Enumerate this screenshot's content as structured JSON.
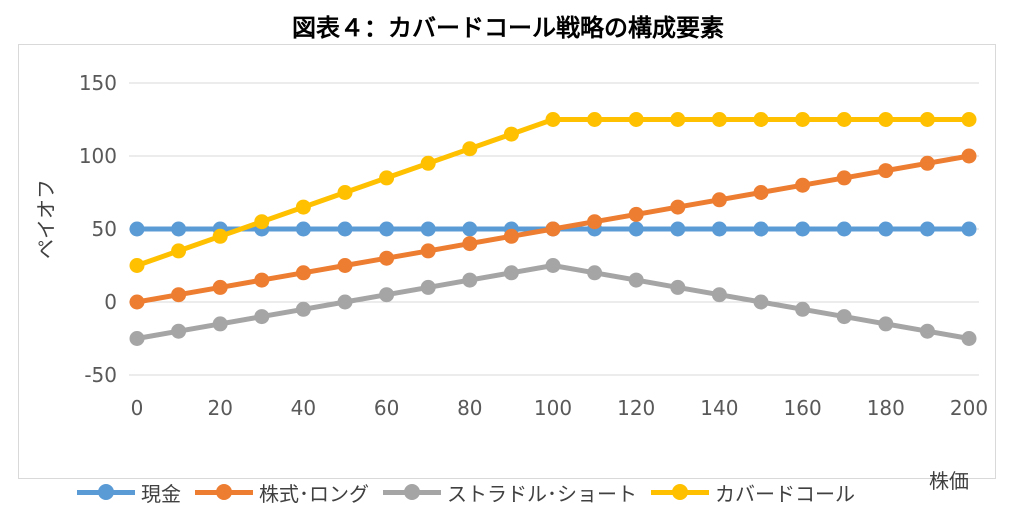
{
  "title": "図表４：カバードコール戦略の構成要素",
  "chart_data": {
    "type": "line",
    "title": "図表４：カバードコール戦略の構成要素",
    "xlabel": "株価",
    "ylabel": "ペイオフ",
    "x": [
      0,
      10,
      20,
      30,
      40,
      50,
      60,
      70,
      80,
      90,
      100,
      110,
      120,
      130,
      140,
      150,
      160,
      170,
      180,
      190,
      200
    ],
    "xticks": [
      0,
      20,
      40,
      60,
      80,
      100,
      120,
      140,
      160,
      180,
      200
    ],
    "yticks": [
      -50,
      0,
      50,
      100,
      150
    ],
    "xlim": [
      0,
      200
    ],
    "ylim": [
      -50,
      150
    ],
    "grid": "horizontal",
    "legend_position": "bottom",
    "series": [
      {
        "name": "現金",
        "color": "#5b9bd5",
        "values": [
          50,
          50,
          50,
          50,
          50,
          50,
          50,
          50,
          50,
          50,
          50,
          50,
          50,
          50,
          50,
          50,
          50,
          50,
          50,
          50,
          50
        ]
      },
      {
        "name": "株式･ロング",
        "color": "#ed7d31",
        "values": [
          0,
          5,
          10,
          15,
          20,
          25,
          30,
          35,
          40,
          45,
          50,
          55,
          60,
          65,
          70,
          75,
          80,
          85,
          90,
          95,
          100
        ]
      },
      {
        "name": "ストラドル･ショート",
        "color": "#a5a5a5",
        "values": [
          -25,
          -20,
          -15,
          -10,
          -5,
          0,
          5,
          10,
          15,
          20,
          25,
          20,
          15,
          10,
          5,
          0,
          -5,
          -10,
          -15,
          -20,
          -25
        ]
      },
      {
        "name": "カバードコール",
        "color": "#ffc000",
        "values": [
          25,
          35,
          45,
          55,
          65,
          75,
          85,
          95,
          105,
          115,
          125,
          125,
          125,
          125,
          125,
          125,
          125,
          125,
          125,
          125,
          125
        ]
      }
    ]
  }
}
